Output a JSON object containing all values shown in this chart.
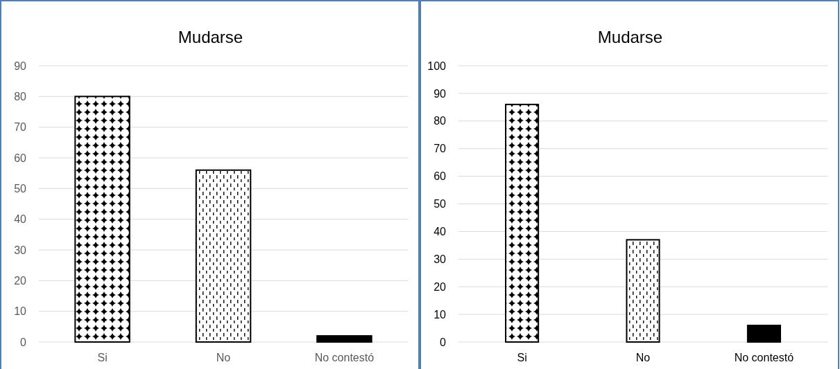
{
  "chart_data": [
    {
      "type": "bar",
      "title": "Mudarse",
      "categories": [
        "Si",
        "No",
        "No contestó"
      ],
      "values": [
        80,
        56,
        2
      ],
      "colors": [
        "#000000",
        "#000000",
        "#000000"
      ],
      "ylim": [
        0,
        90
      ],
      "yticks": [
        0,
        10,
        20,
        30,
        40,
        50,
        60,
        70,
        80,
        90
      ],
      "grid": "y"
    },
    {
      "type": "bar",
      "title": "Mudarse",
      "categories": [
        "Si",
        "No",
        "No contestó"
      ],
      "values": [
        86,
        37,
        6
      ],
      "colors": [
        "#000000",
        "#000000",
        "#000000"
      ],
      "ylim": [
        0,
        100
      ],
      "yticks": [
        0,
        10,
        20,
        30,
        40,
        50,
        60,
        70,
        80,
        90,
        100
      ],
      "grid": "y"
    }
  ]
}
